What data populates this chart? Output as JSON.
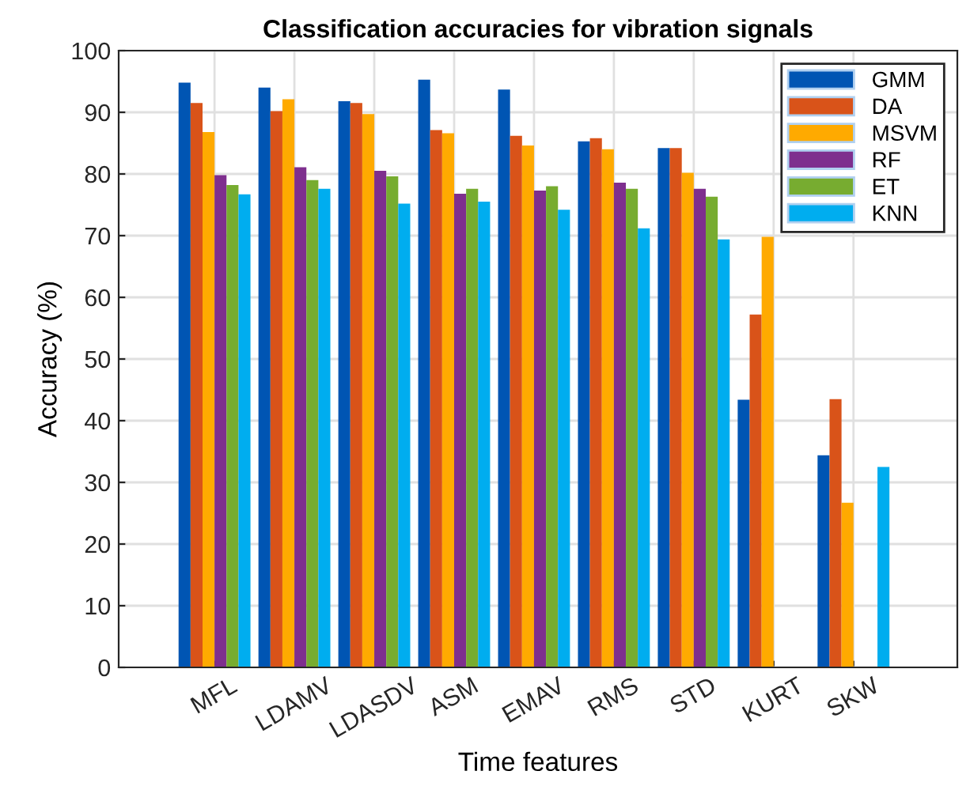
{
  "chart_data": {
    "type": "bar",
    "title": "Classification accuracies for vibration signals",
    "xlabel": "Time features",
    "ylabel": "Accuracy (%)",
    "categories": [
      "MFL",
      "LDAMV",
      "LDASDV",
      "ASM",
      "EMAV",
      "RMS",
      "STD",
      "KURT",
      "SKW"
    ],
    "series": [
      {
        "name": "GMM",
        "color": "#0055b3",
        "values": [
          94.8,
          94.0,
          91.8,
          95.3,
          93.7,
          85.3,
          84.2,
          43.4,
          34.4
        ]
      },
      {
        "name": "DA",
        "color": "#d95319",
        "values": [
          91.5,
          90.2,
          91.5,
          87.1,
          86.2,
          85.8,
          84.2,
          57.2,
          43.5
        ]
      },
      {
        "name": "MSVM",
        "color": "#ffaa00",
        "values": [
          86.8,
          92.1,
          89.7,
          86.6,
          84.6,
          84.0,
          80.2,
          69.8,
          26.7
        ]
      },
      {
        "name": "RF",
        "color": "#7e2f8e",
        "values": [
          79.8,
          81.1,
          80.5,
          76.8,
          77.3,
          78.6,
          77.6,
          null,
          null
        ]
      },
      {
        "name": "ET",
        "color": "#77ac30",
        "values": [
          78.2,
          79.0,
          79.6,
          77.6,
          78.0,
          77.6,
          76.3,
          null,
          null
        ]
      },
      {
        "name": "KNN",
        "color": "#00adef",
        "values": [
          76.7,
          77.6,
          75.2,
          75.5,
          74.2,
          71.2,
          69.4,
          null,
          32.5
        ]
      }
    ],
    "ylim": [
      0,
      100
    ],
    "yticks": [
      0,
      10,
      20,
      30,
      40,
      50,
      60,
      70,
      80,
      90,
      100
    ],
    "grid": true,
    "legend": "top right"
  }
}
